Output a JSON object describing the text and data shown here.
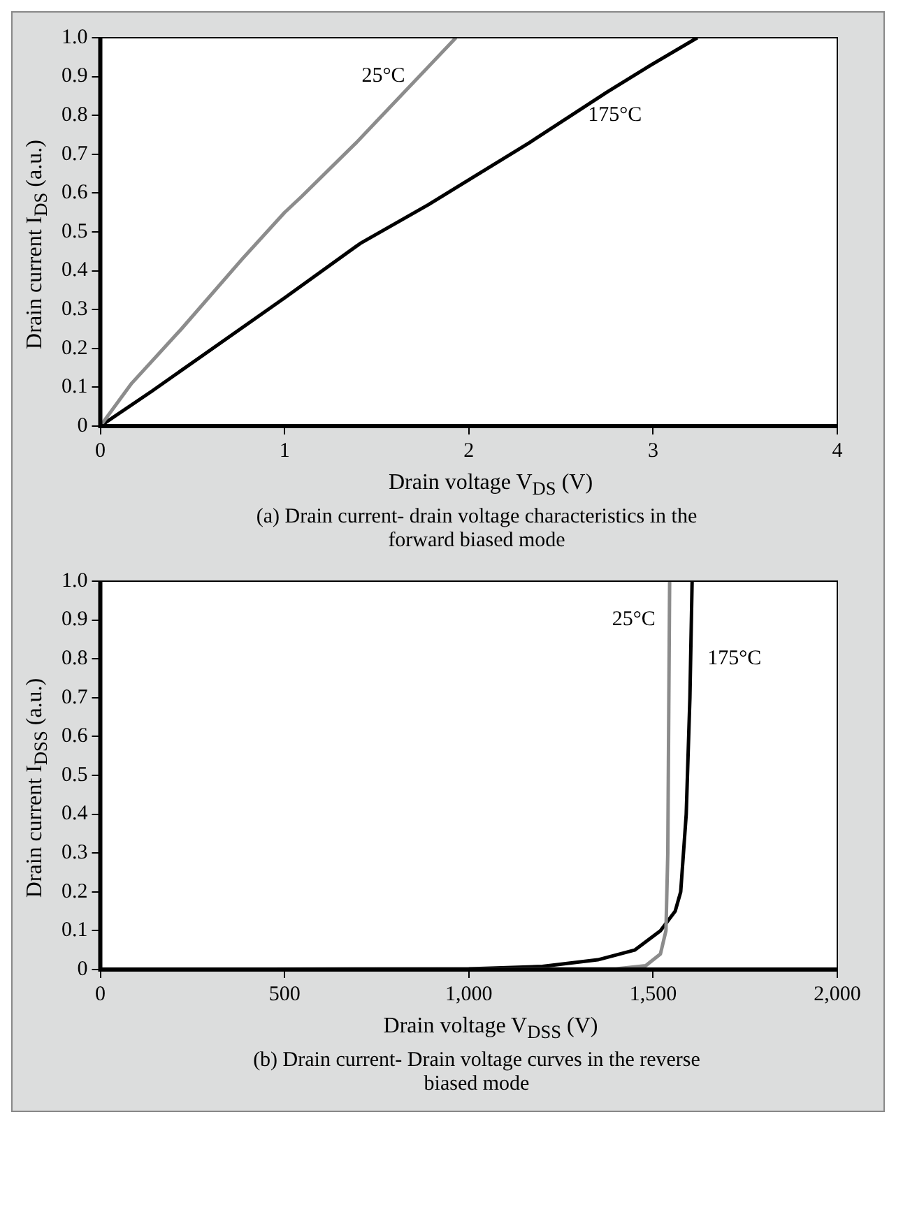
{
  "chart_data": [
    {
      "type": "line",
      "xlabel": "Drain voltage V$_{DS}$ (V)",
      "ylabel": "Drain current I$_{DS}$ (a.u.)",
      "annotations": [
        "(a) Drain current- drain voltage characteristics in the forward biased mode"
      ],
      "xlim": [
        0,
        4
      ],
      "xticks": [
        0,
        1,
        2,
        3,
        4
      ],
      "ylim": [
        0,
        1
      ],
      "yticks": [
        0,
        0.1,
        0.2,
        0.3,
        0.4,
        0.5,
        0.6,
        0.7,
        0.8,
        0.9,
        {
          "value": 1,
          "label": "1.0"
        }
      ],
      "legend": false,
      "marker": "none",
      "line_style": "solid",
      "series": [
        {
          "name": "25°C",
          "color": "#8c8c8c",
          "x": [
            0,
            0.17,
            0.44,
            0.77,
            1.0,
            1.09,
            1.39,
            1.49,
            1.81,
            1.93
          ],
          "values": [
            0,
            0.11,
            0.25,
            0.43,
            0.55,
            0.59,
            0.73,
            0.78,
            0.94,
            1.0
          ]
        },
        {
          "name": "175°C",
          "color": "#000000",
          "x": [
            0,
            0.28,
            1.0,
            1.41,
            1.78,
            2.33,
            2.75,
            2.99,
            3.24
          ],
          "values": [
            0,
            0.09,
            0.33,
            0.47,
            0.57,
            0.73,
            0.86,
            0.93,
            1.0
          ]
        }
      ]
    },
    {
      "type": "line",
      "xlabel": "Drain voltage V$_{DSS}$ (V)",
      "ylabel": "Drain current I$_{DSS}$ (a.u.)",
      "annotations": [
        "(b) Drain current- Drain voltage curves in the reverse biased mode"
      ],
      "xlim": [
        0,
        2000
      ],
      "xticks": [
        0,
        500,
        {
          "value": 1000,
          "label": "1,000"
        },
        {
          "value": 1500,
          "label": "1,500"
        },
        {
          "value": 2000,
          "label": "2,000"
        }
      ],
      "ylim": [
        0,
        1
      ],
      "yticks": [
        0,
        0.1,
        0.2,
        0.3,
        0.4,
        0.5,
        0.6,
        0.7,
        0.8,
        0.9,
        {
          "value": 1,
          "label": "1.0"
        }
      ],
      "legend": false,
      "marker": "none",
      "line_style": "solid",
      "series": [
        {
          "name": "25°C",
          "color": "#8c8c8c",
          "x": [
            0,
            1400,
            1480,
            1520,
            1535,
            1540,
            1545
          ],
          "values": [
            0,
            0.002,
            0.01,
            0.04,
            0.1,
            0.3,
            1.0
          ]
        },
        {
          "name": "175°C",
          "color": "#000000",
          "x": [
            0,
            1000,
            1200,
            1350,
            1450,
            1520,
            1560,
            1575,
            1590,
            1600,
            1606
          ],
          "values": [
            0,
            0.002,
            0.008,
            0.025,
            0.05,
            0.1,
            0.15,
            0.2,
            0.4,
            0.7,
            1.0
          ]
        }
      ]
    }
  ]
}
